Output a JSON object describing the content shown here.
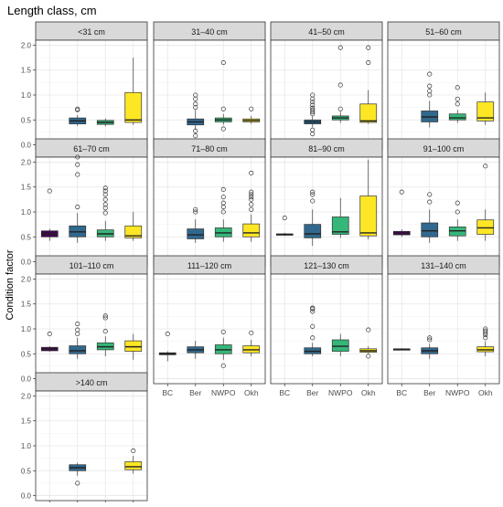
{
  "chart_data": {
    "type": "boxplot",
    "title": "Length class, cm",
    "ylabel": "Condition factor",
    "xlabel": "",
    "categories": [
      "BC",
      "Ber",
      "NWPO",
      "Okh"
    ],
    "ylim": [
      -0.1,
      2.1
    ],
    "yticks": [
      "0.0",
      "0.5",
      "1.0",
      "1.5",
      "2.0"
    ],
    "grid": true,
    "colors": {
      "BC": "#440154",
      "Ber": "#31688e",
      "NWPO": "#35b779",
      "Okh": "#fde725"
    },
    "panels": [
      {
        "label": "<31 cm",
        "boxes": [
          null,
          {
            "category": "Ber",
            "whisker_low": 0.38,
            "q1": 0.42,
            "median": 0.48,
            "q3": 0.54,
            "whisker_high": 0.6,
            "outliers": [
              0.7,
              0.72
            ]
          },
          {
            "category": "NWPO",
            "whisker_low": 0.37,
            "q1": 0.41,
            "median": 0.45,
            "q3": 0.49,
            "whisker_high": 0.53,
            "outliers": []
          },
          {
            "category": "Okh",
            "whisker_low": 0.4,
            "q1": 0.45,
            "median": 0.5,
            "q3": 1.05,
            "whisker_high": 1.75,
            "outliers": []
          }
        ]
      },
      {
        "label": "31–40 cm",
        "boxes": [
          null,
          {
            "category": "Ber",
            "whisker_low": 0.3,
            "q1": 0.4,
            "median": 0.46,
            "q3": 0.52,
            "whisker_high": 0.7,
            "outliers": [
              0.18,
              0.28,
              0.75,
              0.82,
              0.92,
              1.0
            ]
          },
          {
            "category": "NWPO",
            "whisker_low": 0.4,
            "q1": 0.46,
            "median": 0.5,
            "q3": 0.54,
            "whisker_high": 0.62,
            "outliers": [
              0.32,
              0.72,
              1.65
            ]
          },
          {
            "category": "Okh",
            "whisker_low": 0.42,
            "q1": 0.46,
            "median": 0.49,
            "q3": 0.52,
            "whisker_high": 0.58,
            "outliers": [
              0.72
            ]
          }
        ]
      },
      {
        "label": "41–50 cm",
        "boxes": [
          null,
          {
            "category": "Ber",
            "whisker_low": 0.36,
            "q1": 0.42,
            "median": 0.46,
            "q3": 0.5,
            "whisker_high": 0.58,
            "outliers": [
              0.22,
              0.3,
              0.62,
              0.66,
              0.7,
              0.74,
              0.8,
              0.86,
              0.92,
              1.0
            ]
          },
          {
            "category": "NWPO",
            "whisker_low": 0.44,
            "q1": 0.5,
            "median": 0.54,
            "q3": 0.58,
            "whisker_high": 0.66,
            "outliers": [
              0.72,
              1.2,
              1.95
            ]
          },
          {
            "category": "Okh",
            "whisker_low": 0.42,
            "q1": 0.45,
            "median": 0.48,
            "q3": 0.82,
            "whisker_high": 1.1,
            "outliers": [
              1.65,
              1.95
            ]
          }
        ]
      },
      {
        "label": "51–60 cm",
        "boxes": [
          null,
          {
            "category": "Ber",
            "whisker_low": 0.35,
            "q1": 0.46,
            "median": 0.56,
            "q3": 0.68,
            "whisker_high": 0.88,
            "outliers": [
              1.0,
              1.08,
              1.18,
              1.42
            ]
          },
          {
            "category": "NWPO",
            "whisker_low": 0.44,
            "q1": 0.5,
            "median": 0.54,
            "q3": 0.62,
            "whisker_high": 0.7,
            "outliers": [
              0.82,
              0.92,
              1.15
            ]
          },
          {
            "category": "Okh",
            "whisker_low": 0.4,
            "q1": 0.48,
            "median": 0.54,
            "q3": 0.86,
            "whisker_high": 1.05,
            "outliers": []
          }
        ]
      },
      {
        "label": "61–70 cm",
        "boxes": [
          {
            "category": "BC",
            "whisker_low": 0.42,
            "q1": 0.5,
            "median": 0.56,
            "q3": 0.62,
            "whisker_high": 0.66,
            "outliers": [
              1.42
            ]
          },
          {
            "category": "Ber",
            "whisker_low": 0.38,
            "q1": 0.5,
            "median": 0.6,
            "q3": 0.72,
            "whisker_high": 0.98,
            "outliers": [
              1.1,
              1.75,
              1.95,
              2.1
            ]
          },
          {
            "category": "NWPO",
            "whisker_low": 0.42,
            "q1": 0.5,
            "median": 0.56,
            "q3": 0.64,
            "whisker_high": 0.82,
            "outliers": [
              0.98,
              1.08,
              1.15,
              1.25,
              1.35,
              1.42,
              1.48
            ]
          },
          {
            "category": "Okh",
            "whisker_low": 0.42,
            "q1": 0.48,
            "median": 0.52,
            "q3": 0.72,
            "whisker_high": 1.0,
            "outliers": []
          }
        ]
      },
      {
        "label": "71–80 cm",
        "boxes": [
          null,
          {
            "category": "Ber",
            "whisker_low": 0.38,
            "q1": 0.46,
            "median": 0.54,
            "q3": 0.66,
            "whisker_high": 0.85,
            "outliers": [
              1.0,
              1.05
            ]
          },
          {
            "category": "NWPO",
            "whisker_low": 0.4,
            "q1": 0.5,
            "median": 0.58,
            "q3": 0.68,
            "whisker_high": 0.85,
            "outliers": [
              1.0,
              1.1,
              1.18,
              1.3,
              1.45
            ]
          },
          {
            "category": "Okh",
            "whisker_low": 0.4,
            "q1": 0.5,
            "median": 0.58,
            "q3": 0.76,
            "whisker_high": 0.95,
            "outliers": [
              1.05,
              1.15,
              1.25,
              1.3,
              1.35,
              1.4,
              1.78
            ]
          }
        ]
      },
      {
        "label": "81–90 cm",
        "boxes": [
          {
            "category": "BC",
            "whisker_low": 0.52,
            "q1": 0.54,
            "median": 0.55,
            "q3": 0.56,
            "whisker_high": 0.58,
            "outliers": [
              0.88
            ]
          },
          {
            "category": "Ber",
            "whisker_low": 0.32,
            "q1": 0.48,
            "median": 0.56,
            "q3": 0.75,
            "whisker_high": 1.05,
            "outliers": [
              1.22,
              1.35,
              1.4
            ]
          },
          {
            "category": "NWPO",
            "whisker_low": 0.48,
            "q1": 0.55,
            "median": 0.6,
            "q3": 0.9,
            "whisker_high": 1.28,
            "outliers": []
          },
          {
            "category": "Okh",
            "whisker_low": 0.45,
            "q1": 0.52,
            "median": 0.58,
            "q3": 1.32,
            "whisker_high": 2.05,
            "outliers": []
          }
        ]
      },
      {
        "label": "91–100 cm",
        "boxes": [
          {
            "category": "BC",
            "whisker_low": 0.5,
            "q1": 0.54,
            "median": 0.57,
            "q3": 0.61,
            "whisker_high": 0.65,
            "outliers": [
              1.4
            ]
          },
          {
            "category": "Ber",
            "whisker_low": 0.38,
            "q1": 0.5,
            "median": 0.62,
            "q3": 0.78,
            "whisker_high": 1.05,
            "outliers": [
              1.2,
              1.35
            ]
          },
          {
            "category": "NWPO",
            "whisker_low": 0.42,
            "q1": 0.52,
            "median": 0.62,
            "q3": 0.7,
            "whisker_high": 0.85,
            "outliers": [
              1.0,
              1.18
            ]
          },
          {
            "category": "Okh",
            "whisker_low": 0.42,
            "q1": 0.55,
            "median": 0.68,
            "q3": 0.84,
            "whisker_high": 1.05,
            "outliers": [
              1.92
            ]
          }
        ]
      },
      {
        "label": "101–110 cm",
        "boxes": [
          {
            "category": "BC",
            "whisker_low": 0.54,
            "q1": 0.56,
            "median": 0.6,
            "q3": 0.63,
            "whisker_high": 0.65,
            "outliers": [
              0.9
            ]
          },
          {
            "category": "Ber",
            "whisker_low": 0.4,
            "q1": 0.5,
            "median": 0.56,
            "q3": 0.66,
            "whisker_high": 0.82,
            "outliers": [
              0.9,
              0.98,
              1.1
            ]
          },
          {
            "category": "NWPO",
            "whisker_low": 0.45,
            "q1": 0.58,
            "median": 0.64,
            "q3": 0.72,
            "whisker_high": 0.85,
            "outliers": [
              0.95,
              1.22,
              1.26
            ]
          },
          {
            "category": "Okh",
            "whisker_low": 0.38,
            "q1": 0.55,
            "median": 0.64,
            "q3": 0.76,
            "whisker_high": 0.9,
            "outliers": []
          }
        ]
      },
      {
        "label": "111–120 cm",
        "boxes": [
          {
            "category": "BC",
            "whisker_low": 0.35,
            "q1": 0.48,
            "median": 0.5,
            "q3": 0.52,
            "whisker_high": 0.55,
            "outliers": [
              0.9
            ]
          },
          {
            "category": "Ber",
            "whisker_low": 0.4,
            "q1": 0.52,
            "median": 0.58,
            "q3": 0.64,
            "whisker_high": 0.76,
            "outliers": []
          },
          {
            "category": "NWPO",
            "whisker_low": 0.38,
            "q1": 0.5,
            "median": 0.58,
            "q3": 0.68,
            "whisker_high": 0.82,
            "outliers": [
              0.26,
              0.94
            ]
          },
          {
            "category": "Okh",
            "whisker_low": 0.45,
            "q1": 0.52,
            "median": 0.58,
            "q3": 0.66,
            "whisker_high": 0.78,
            "outliers": [
              0.92
            ]
          }
        ]
      },
      {
        "label": "121–130 cm",
        "boxes": [
          null,
          {
            "category": "Ber",
            "whisker_low": 0.45,
            "q1": 0.5,
            "median": 0.55,
            "q3": 0.62,
            "whisker_high": 0.72,
            "outliers": [
              0.82,
              1.05,
              1.35,
              1.4,
              1.42
            ]
          },
          {
            "category": "NWPO",
            "whisker_low": 0.45,
            "q1": 0.55,
            "median": 0.65,
            "q3": 0.78,
            "whisker_high": 0.9,
            "outliers": []
          },
          {
            "category": "Okh",
            "whisker_low": 0.5,
            "q1": 0.53,
            "median": 0.56,
            "q3": 0.6,
            "whisker_high": 0.65,
            "outliers": [
              0.45,
              0.98
            ]
          }
        ]
      },
      {
        "label": "131–140 cm",
        "boxes": [
          {
            "category": "BC",
            "whisker_low": 0.57,
            "q1": 0.58,
            "median": 0.59,
            "q3": 0.6,
            "whisker_high": 0.61,
            "outliers": []
          },
          {
            "category": "Ber",
            "whisker_low": 0.4,
            "q1": 0.5,
            "median": 0.56,
            "q3": 0.62,
            "whisker_high": 0.7,
            "outliers": [
              0.78,
              0.82
            ]
          },
          null,
          {
            "category": "Okh",
            "whisker_low": 0.45,
            "q1": 0.54,
            "median": 0.58,
            "q3": 0.64,
            "whisker_high": 0.75,
            "outliers": [
              0.82,
              0.88,
              0.92,
              0.96,
              1.0
            ]
          }
        ]
      },
      {
        "label": ">140 cm",
        "boxes": [
          null,
          {
            "category": "Ber",
            "whisker_low": 0.4,
            "q1": 0.5,
            "median": 0.56,
            "q3": 0.62,
            "whisker_high": 0.66,
            "outliers": [
              0.25
            ]
          },
          null,
          {
            "category": "Okh",
            "whisker_low": 0.44,
            "q1": 0.52,
            "median": 0.58,
            "q3": 0.68,
            "whisker_high": 0.8,
            "outliers": [
              0.9
            ]
          }
        ]
      }
    ]
  }
}
